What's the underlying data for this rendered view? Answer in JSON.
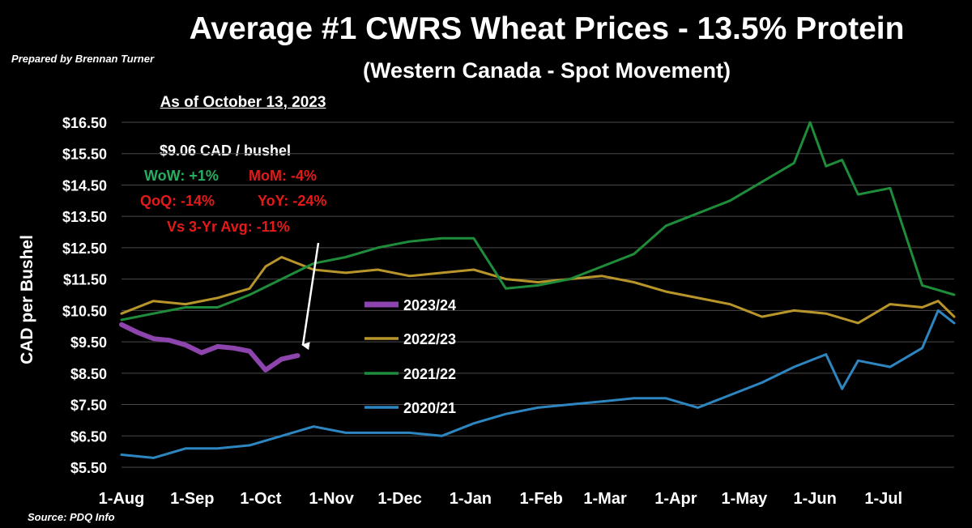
{
  "chart_data": {
    "type": "line",
    "title": "Average #1 CWRS Wheat Prices - 13.5% Protein",
    "subtitle": "(Western Canada - Spot Movement)",
    "ylabel": "CAD per Bushel",
    "xlabel": "",
    "ylim": [
      5.5,
      16.5
    ],
    "yticks": [
      "$16.50",
      "$15.50",
      "$14.50",
      "$13.50",
      "$12.50",
      "$11.50",
      "$10.50",
      "$9.50",
      "$8.50",
      "$7.50",
      "$6.50",
      "$5.50"
    ],
    "ytick_values": [
      16.5,
      15.5,
      14.5,
      13.5,
      12.5,
      11.5,
      10.5,
      9.5,
      8.5,
      7.5,
      6.5,
      5.5
    ],
    "xticks": [
      "1-Aug",
      "1-Sep",
      "1-Oct",
      "1-Nov",
      "1-Dec",
      "1-Jan",
      "1-Feb",
      "1-Mar",
      "1-Apr",
      "1-May",
      "1-Jun",
      "1-Jul"
    ],
    "grid": true,
    "legend_position": "center",
    "series": [
      {
        "name": "2023/24",
        "color": "#8e44ad",
        "week": [
          0,
          1,
          2,
          3,
          4,
          5,
          6,
          7,
          8,
          9,
          10,
          11
        ],
        "values": [
          10.05,
          9.8,
          9.6,
          9.55,
          9.4,
          9.15,
          9.35,
          9.3,
          9.2,
          8.6,
          8.95,
          9.06
        ]
      },
      {
        "name": "2022/23",
        "color": "#b8952a",
        "week": [
          0,
          2,
          4,
          6,
          8,
          9,
          10,
          12,
          14,
          16,
          18,
          20,
          22,
          24,
          26,
          28,
          30,
          32,
          34,
          36,
          38,
          40,
          42,
          44,
          46,
          48,
          50,
          51,
          52
        ],
        "values": [
          10.4,
          10.8,
          10.7,
          10.9,
          11.2,
          11.9,
          12.2,
          11.8,
          11.7,
          11.8,
          11.6,
          11.7,
          11.8,
          11.5,
          11.4,
          11.5,
          11.6,
          11.4,
          11.1,
          10.9,
          10.7,
          10.3,
          10.5,
          10.4,
          10.1,
          10.7,
          10.6,
          10.8,
          10.3
        ]
      },
      {
        "name": "2021/22",
        "color": "#1e8c3a",
        "week": [
          0,
          2,
          4,
          6,
          8,
          10,
          12,
          14,
          16,
          18,
          20,
          22,
          24,
          26,
          28,
          30,
          32,
          34,
          36,
          38,
          40,
          42,
          43,
          44,
          45,
          46,
          48,
          50,
          52
        ],
        "values": [
          10.2,
          10.4,
          10.6,
          10.6,
          11.0,
          11.5,
          12.0,
          12.2,
          12.5,
          12.7,
          12.8,
          12.8,
          11.2,
          11.3,
          11.5,
          11.9,
          12.3,
          13.2,
          13.6,
          14.0,
          14.6,
          15.2,
          16.5,
          15.1,
          15.3,
          14.2,
          14.4,
          11.3,
          11.0
        ]
      },
      {
        "name": "2020/21",
        "color": "#2e86c1",
        "week": [
          0,
          2,
          4,
          6,
          8,
          10,
          12,
          14,
          16,
          18,
          20,
          22,
          24,
          26,
          28,
          30,
          32,
          34,
          36,
          38,
          40,
          42,
          44,
          45,
          46,
          48,
          50,
          51,
          52
        ],
        "values": [
          5.9,
          5.8,
          6.1,
          6.1,
          6.2,
          6.5,
          6.8,
          6.6,
          6.6,
          6.6,
          6.5,
          6.9,
          7.2,
          7.4,
          7.5,
          7.6,
          7.7,
          7.7,
          7.4,
          7.8,
          8.2,
          8.7,
          9.1,
          8.0,
          8.9,
          8.7,
          9.3,
          10.5,
          10.1
        ]
      }
    ]
  },
  "prepared_by": "Prepared by Brennan Turner",
  "source": "Source: PDQ Info",
  "summary": {
    "as_of": "As of October 13, 2023",
    "price": "$9.06 CAD / bushel",
    "wow": "WoW: +1%",
    "mom": "MoM: -4%",
    "qoq": "QoQ: -14%",
    "yoy": "YoY: -24%",
    "vs3yr": "Vs 3-Yr Avg: -11%"
  },
  "colors": {
    "positive": "#27ae60",
    "negative": "#e41a1a",
    "grid": "#4a4a4a"
  }
}
